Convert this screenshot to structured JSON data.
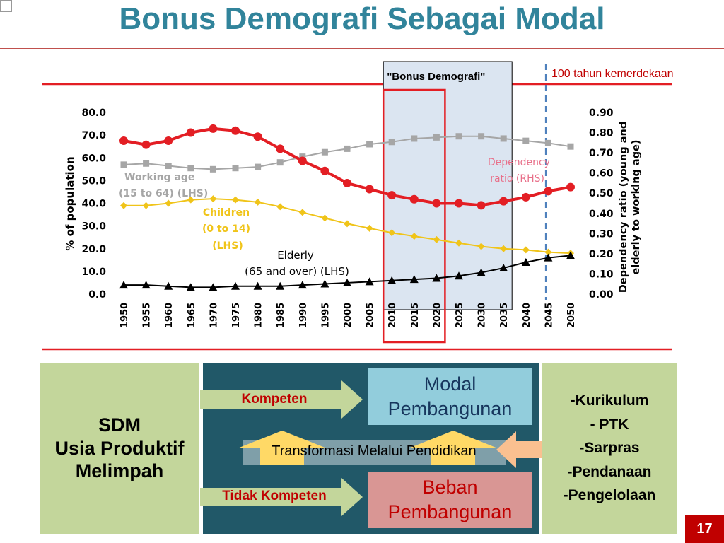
{
  "slide": {
    "title": "Bonus Demografi Sebagai Modal",
    "page_number": "17"
  },
  "chart_data": {
    "type": "line",
    "categories": [
      "1950",
      "1955",
      "1960",
      "1965",
      "1970",
      "1975",
      "1980",
      "1985",
      "1990",
      "1995",
      "2000",
      "2005",
      "2010",
      "2015",
      "2020",
      "2025",
      "2030",
      "2035",
      "2040",
      "2045",
      "2050"
    ],
    "ylim_left": [
      0,
      80
    ],
    "ylim_right": [
      0,
      0.9
    ],
    "left_ticks": [
      "80.0",
      "70.0",
      "60.0",
      "50.0",
      "40.0",
      "30.0",
      "20.0",
      "10.0",
      "0.0"
    ],
    "right_ticks": [
      "0.90",
      "0.80",
      "0.70",
      "0.60",
      "0.50",
      "0.40",
      "0.30",
      "0.20",
      "0.10",
      "0.00"
    ],
    "ylabel_left": "% of population",
    "ylabel_right": "Dependency ratio (young and elderly to working age)",
    "series": [
      {
        "name": "Working age (15 to 64) (LHS)",
        "axis": "left",
        "color": "#a6a6a6",
        "marker": "square",
        "values": [
          57.0,
          57.5,
          56.5,
          55.5,
          55.0,
          55.5,
          56.0,
          58.0,
          60.5,
          62.5,
          64.0,
          66.0,
          67.0,
          68.5,
          69.0,
          69.5,
          69.5,
          68.5,
          67.5,
          66.5,
          65.0
        ]
      },
      {
        "name": "Children (0 to 14) (LHS)",
        "axis": "left",
        "color": "#f0c419",
        "marker": "diamond",
        "values": [
          39.0,
          39.0,
          40.0,
          41.5,
          42.0,
          41.5,
          40.5,
          38.5,
          36.0,
          33.5,
          31.0,
          29.0,
          27.0,
          25.5,
          24.0,
          22.5,
          21.0,
          20.0,
          19.5,
          18.5,
          18.0
        ]
      },
      {
        "name": "Elderly (65 and over) (LHS)",
        "axis": "left",
        "color": "#000000",
        "marker": "triangle",
        "values": [
          4.0,
          4.0,
          3.5,
          3.0,
          3.0,
          3.5,
          3.5,
          3.5,
          4.0,
          4.5,
          5.0,
          5.5,
          6.0,
          6.5,
          7.0,
          8.0,
          9.5,
          11.5,
          14.0,
          16.0,
          17.0
        ]
      },
      {
        "name": "Dependency ratio (RHS)",
        "axis": "right",
        "color": "#e31e24",
        "marker": "circle",
        "values": [
          0.76,
          0.74,
          0.76,
          0.8,
          0.82,
          0.81,
          0.78,
          0.72,
          0.66,
          0.61,
          0.55,
          0.52,
          0.49,
          0.47,
          0.45,
          0.45,
          0.44,
          0.46,
          0.48,
          0.51,
          0.53
        ]
      }
    ],
    "series_labels": {
      "working": [
        "Working age",
        "(15 to 64) (LHS)"
      ],
      "children": [
        "Children",
        "(0 to 14)",
        "(LHS)"
      ],
      "elderly": [
        "Elderly",
        "(65 and over) (LHS)"
      ],
      "dependency": [
        "Dependency",
        "ratio (RHS)"
      ]
    },
    "annotations": {
      "bonus_label": "\"Bonus Demografi\"",
      "kemerdekaan_label": "100  tahun kemerdekaan",
      "bonus_span": [
        "2010",
        "2035"
      ],
      "highlight_span": [
        "2010",
        "2020"
      ],
      "dashed_year": "2045"
    },
    "grid": false,
    "legend": "none"
  },
  "diagram": {
    "sdm": [
      "SDM",
      "Usia Produktif",
      "Melimpah"
    ],
    "kompeten": "Kompeten",
    "tidak_kompeten": "Tidak Kompeten",
    "modal": [
      "Modal",
      "Pembangunan"
    ],
    "beban": [
      "Beban",
      "Pembangunan"
    ],
    "transformasi": "Transformasi Melalui Pendidikan",
    "factors": [
      "-Kurikulum",
      "- PTK",
      "-Sarpras",
      "-Pendanaan",
      "-Pengelolaan"
    ]
  },
  "colors": {
    "title": "#31849b",
    "accent_red": "#c0504d",
    "dark_teal": "#215868",
    "light_green": "#c3d69b",
    "light_blue": "#92cddc",
    "pink": "#d99694",
    "arrow_green": "#c3d69b",
    "arrow_yellow": "#ffd966",
    "arrow_orange": "#fac090"
  }
}
